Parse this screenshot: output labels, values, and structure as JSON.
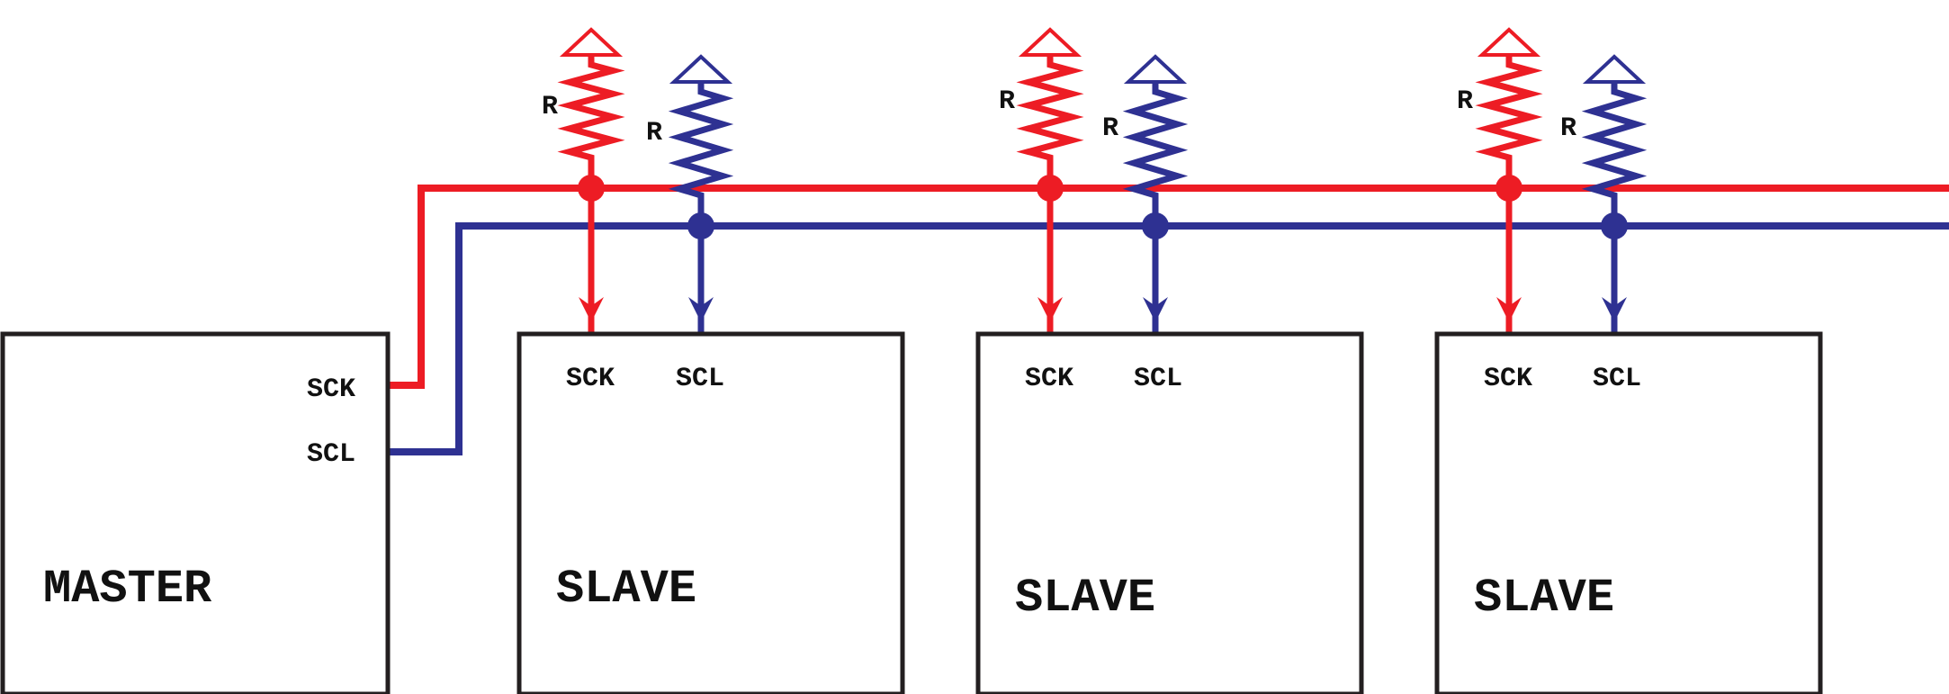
{
  "colors": {
    "sck_line": "#ed1c24",
    "scl_line": "#2e3192",
    "box_outline": "#231f20",
    "text": "#111111",
    "background": "#ffffff"
  },
  "master": {
    "title": "MASTER",
    "sck_pin_label": "SCK",
    "scl_pin_label": "SCL"
  },
  "slaves": [
    {
      "title": "SLAVE",
      "sck_pin_label": "SCK",
      "scl_pin_label": "SCL"
    },
    {
      "title": "SLAVE",
      "sck_pin_label": "SCK",
      "scl_pin_label": "SCL"
    },
    {
      "title": "SLAVE",
      "sck_pin_label": "SCK",
      "scl_pin_label": "SCL"
    }
  ],
  "pullup_resistors": [
    {
      "label": "R",
      "line": "SCK"
    },
    {
      "label": "R",
      "line": "SCL"
    },
    {
      "label": "R",
      "line": "SCK"
    },
    {
      "label": "R",
      "line": "SCL"
    },
    {
      "label": "R",
      "line": "SCK"
    },
    {
      "label": "R",
      "line": "SCL"
    }
  ]
}
